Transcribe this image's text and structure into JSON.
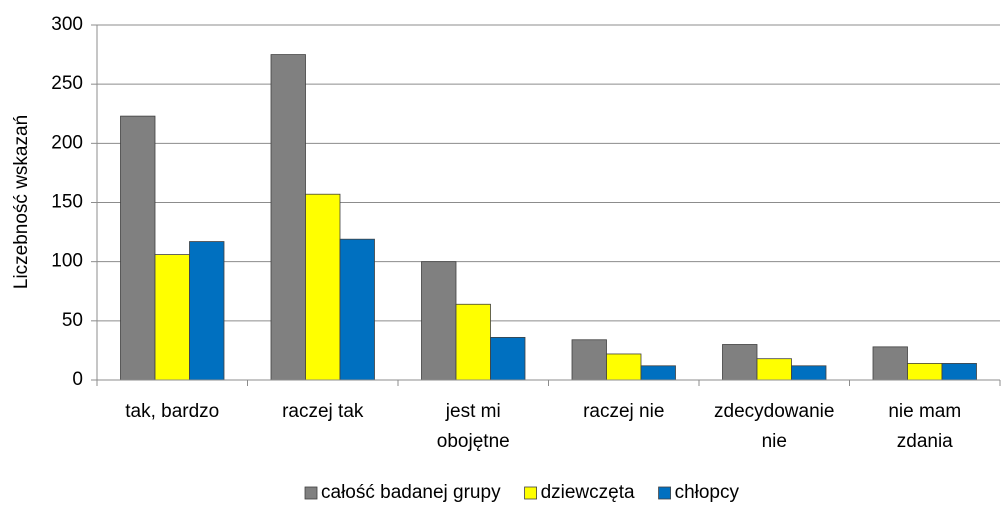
{
  "chart_data": {
    "type": "bar",
    "y_label": "Liczebność wskazań",
    "categories": [
      "tak, bardzo",
      "raczej tak",
      "jest mi\nobojętne",
      "raczej nie",
      "zdecydowanie\nnie",
      "nie mam\nzdania"
    ],
    "series": [
      {
        "name": "całość badanej grupy",
        "color": "#808080",
        "values": [
          223,
          275,
          100,
          34,
          30,
          28
        ]
      },
      {
        "name": "dziewczęta",
        "color": "#ffff00",
        "values": [
          106,
          157,
          64,
          22,
          18,
          14
        ]
      },
      {
        "name": "chłopcy",
        "color": "#0070c0",
        "values": [
          117,
          119,
          36,
          12,
          12,
          14
        ]
      }
    ],
    "ylim": [
      0,
      300
    ],
    "yticks": [
      0,
      50,
      100,
      150,
      200,
      250,
      300
    ],
    "grid": true,
    "legend": "bottom"
  }
}
